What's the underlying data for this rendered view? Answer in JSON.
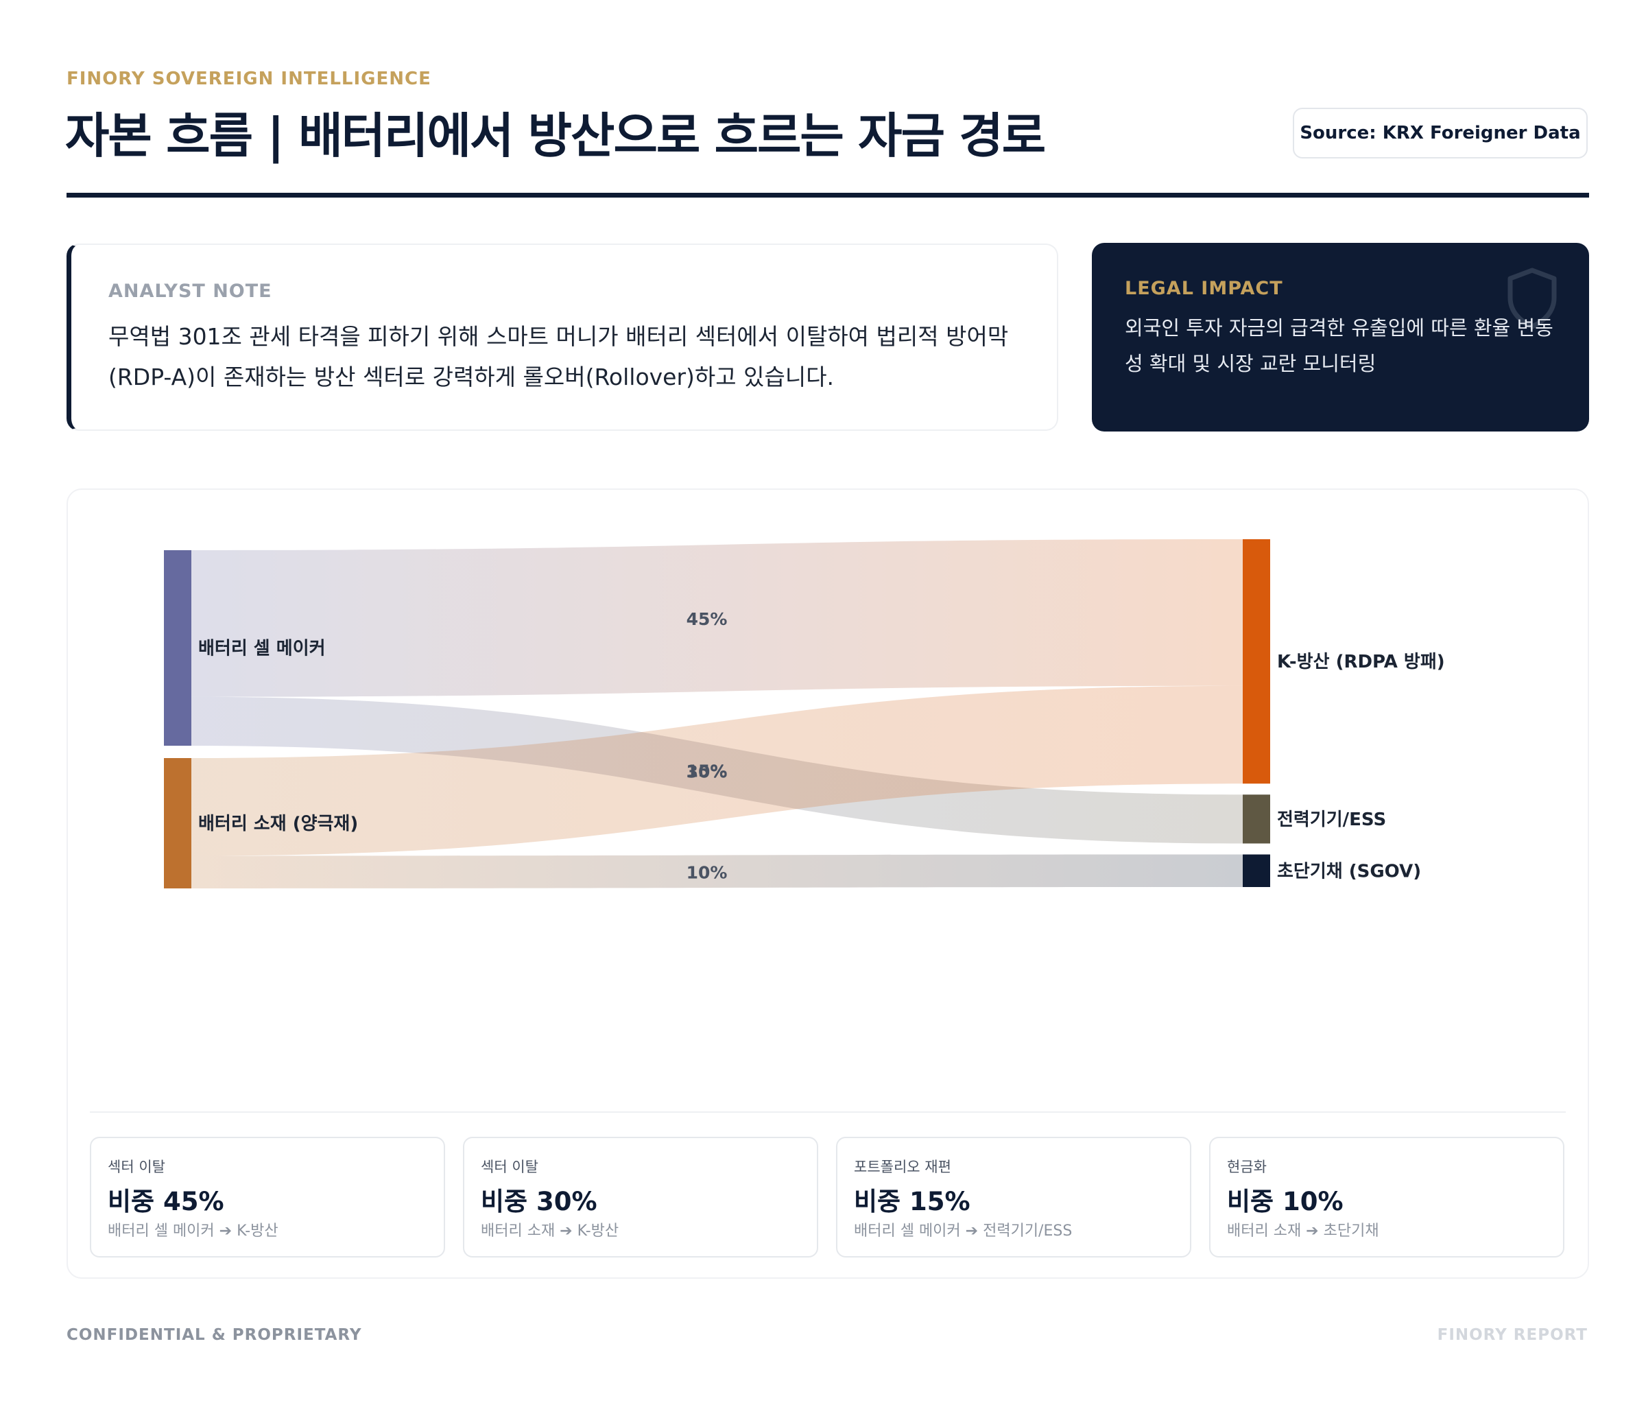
{
  "header": {
    "eyebrow": "FINORY SOVEREIGN INTELLIGENCE",
    "title": "자본 흐름 | 배터리에서 방산으로 흐르는 자금 경로",
    "source": "Source: KRX Foreigner Data"
  },
  "analyst_note": {
    "label": "ANALYST NOTE",
    "text": "무역법 301조 관세 타격을 피하기 위해 스마트 머니가 배터리 섹터에서 이탈하여 법리적 방어막(RDP-A)이 존재하는 방산 섹터로 강력하게 롤오버(Rollover)하고 있습니다."
  },
  "legal_impact": {
    "label": "LEGAL IMPACT",
    "text": "외국인 투자 자금의 급격한 유출입에 따른 환율 변동성 확대 및 시장 교란 모니터링",
    "icon": "shield-icon"
  },
  "chart_data": {
    "type": "sankey",
    "sources": [
      {
        "name": "배터리 셀 메이커",
        "color": "#666a9f"
      },
      {
        "name": "배터리 소재 (양극재)",
        "color": "#bd712f"
      }
    ],
    "targets": [
      {
        "name": "K-방산 (RDPA 방패)",
        "color": "#d85a0c"
      },
      {
        "name": "전력기기/ESS",
        "color": "#5f5843"
      },
      {
        "name": "초단기채 (SGOV)",
        "color": "#0e1b33"
      }
    ],
    "links": [
      {
        "source": 0,
        "target": 0,
        "value": 45,
        "label": "45%"
      },
      {
        "source": 0,
        "target": 1,
        "value": 15,
        "label": "15%"
      },
      {
        "source": 1,
        "target": 0,
        "value": 30,
        "label": "30%"
      },
      {
        "source": 1,
        "target": 2,
        "value": 10,
        "label": "10%"
      }
    ]
  },
  "stats": [
    {
      "category": "섹터 이탈",
      "value": "비중 45%",
      "route": "배터리 셀 메이커 ➔ K-방산"
    },
    {
      "category": "섹터 이탈",
      "value": "비중 30%",
      "route": "배터리 소재 ➔ K-방산"
    },
    {
      "category": "포트폴리오 재편",
      "value": "비중 15%",
      "route": "배터리 셀 메이커 ➔ 전력기기/ESS"
    },
    {
      "category": "현금화",
      "value": "비중 10%",
      "route": "배터리 소재 ➔ 초단기채"
    }
  ],
  "footer": {
    "left": "CONFIDENTIAL & PROPRIETARY",
    "right": "FINORY REPORT"
  }
}
